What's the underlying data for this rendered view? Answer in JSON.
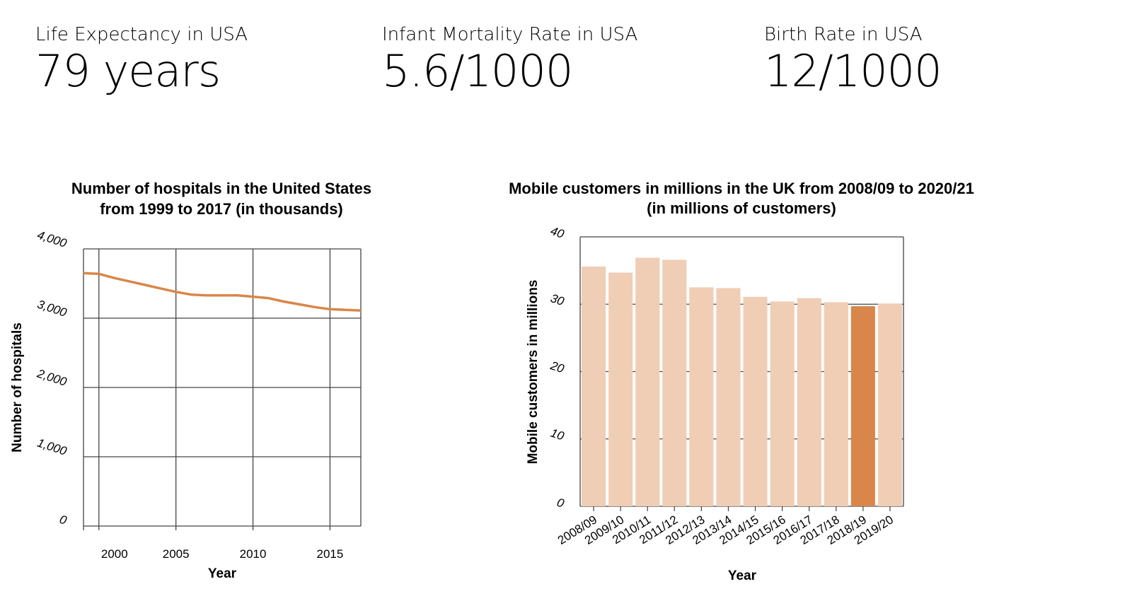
{
  "stats": [
    {
      "label": "Life Expectancy in USA",
      "value": "79 years"
    },
    {
      "label": "Infant Mortality Rate in USA",
      "value": "5.6/1000"
    },
    {
      "label": "Birth Rate in USA",
      "value": "12/1000"
    }
  ],
  "colors": {
    "line": "#d9864a",
    "bar_light": "#f0cdb5",
    "bar_highlight": "#d9864a",
    "grid": "#444444"
  },
  "chart_data": [
    {
      "type": "line",
      "title_lines": [
        "Number of hospitals in the United States",
        "from 1999 to 2017 (in thousands)"
      ],
      "xlabel": "Year",
      "ylabel": "Number of hospitals",
      "xlim": [
        1999,
        2017
      ],
      "ylim": [
        0,
        4000
      ],
      "xticks": [
        2000,
        2005,
        2010,
        2015
      ],
      "yticks": [
        0,
        1000,
        2000,
        3000,
        4000
      ],
      "ytick_labels": [
        "0",
        "1,000",
        "2,000",
        "3,000",
        "4,000"
      ],
      "grid": true,
      "series": [
        {
          "x": [
            1999,
            2000,
            2001,
            2002,
            2003,
            2004,
            2005,
            2006,
            2007,
            2008,
            2009,
            2010,
            2011,
            2012,
            2013,
            2014,
            2015,
            2016,
            2017
          ],
          "values": [
            3650,
            3640,
            3580,
            3530,
            3480,
            3430,
            3380,
            3340,
            3330,
            3330,
            3330,
            3310,
            3290,
            3240,
            3200,
            3160,
            3130,
            3120,
            3110
          ]
        }
      ]
    },
    {
      "type": "bar",
      "title_lines": [
        "Mobile customers in millions in the UK from 2008/09 to 2020/21",
        "(in millions of customers)"
      ],
      "xlabel": "Year",
      "ylabel": "Mobile customers in millions",
      "ylim": [
        0,
        40
      ],
      "yticks": [
        0,
        10,
        20,
        30,
        40
      ],
      "grid": true,
      "categories": [
        "2008/09",
        "2009/10",
        "2010/11",
        "2011/12",
        "2012/13",
        "2013/14",
        "2014/15",
        "2015/16",
        "2016/17",
        "2017/18",
        "2018/19",
        "2019/20"
      ],
      "values": [
        35.6,
        34.7,
        36.9,
        36.6,
        32.5,
        32.4,
        31.1,
        30.4,
        30.9,
        30.3,
        29.7,
        30.1
      ],
      "highlight_index": 10
    }
  ]
}
